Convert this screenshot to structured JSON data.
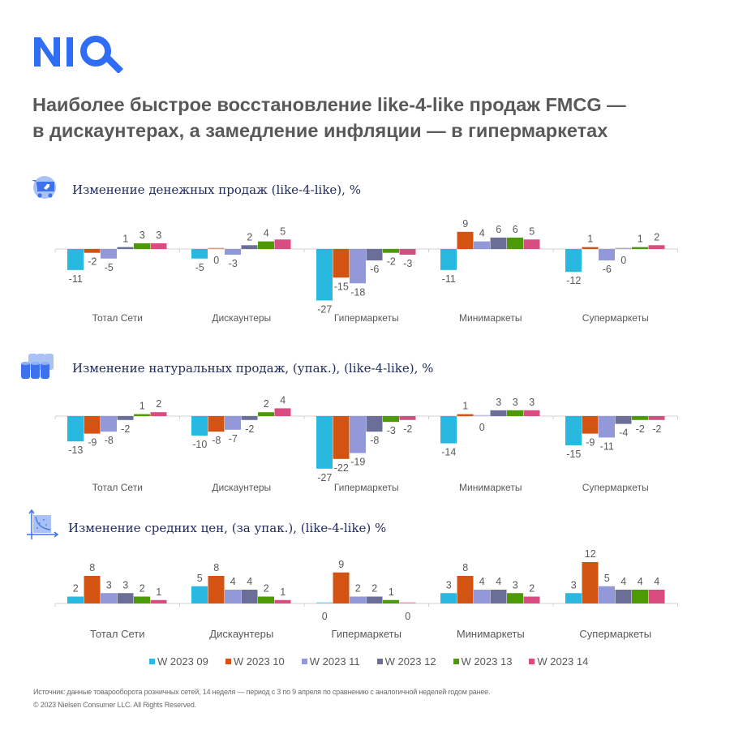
{
  "logo": {
    "text": "NIQ",
    "color": "#2f6df6"
  },
  "title": {
    "line1": "Наиболее быстрое восстановление like-4-like продаж FMCG —",
    "line2": "в дискаунтерах, а замедление инфляции — в гипермаркетах"
  },
  "sections": [
    {
      "icon": "shopping-cart-icon",
      "label": "Изменение денежных продаж (like-4-like), %"
    },
    {
      "icon": "stacked-cans-icon",
      "label": "Изменение натуральных продаж, (упак.), (like-4-like), %"
    },
    {
      "icon": "price-curve-chart-icon",
      "label": "Изменение средних цен, (за упак.), (like-4-like) %"
    }
  ],
  "legend": [
    {
      "label": "W 2023 09",
      "color": "#29b8e0"
    },
    {
      "label": "W 2023 10",
      "color": "#d35412"
    },
    {
      "label": "W 2023 11",
      "color": "#9398d9"
    },
    {
      "label": "W 2023 12",
      "color": "#6b6e96"
    },
    {
      "label": "W 2023 13",
      "color": "#4e9a06"
    },
    {
      "label": "W 2023 14",
      "color": "#d84c80"
    }
  ],
  "chart_data": [
    {
      "type": "bar",
      "title": "Изменение денежных продаж (like-4-like), %",
      "categories": [
        "Тотал Сети",
        "Дискаунтеры",
        "Гипермаркеты",
        "Минимаркеты",
        "Супермаркеты"
      ],
      "series": [
        {
          "name": "W 2023 09",
          "values": [
            -11,
            -5,
            -27,
            -11,
            -12
          ]
        },
        {
          "name": "W 2023 10",
          "values": [
            -2,
            0,
            -15,
            9,
            1
          ]
        },
        {
          "name": "W 2023 11",
          "values": [
            -5,
            -3,
            -18,
            4,
            -6
          ]
        },
        {
          "name": "W 2023 12",
          "values": [
            1,
            2,
            -6,
            6,
            0
          ]
        },
        {
          "name": "W 2023 13",
          "values": [
            3,
            4,
            -2,
            6,
            1
          ]
        },
        {
          "name": "W 2023 14",
          "values": [
            3,
            5,
            -3,
            5,
            2
          ]
        }
      ],
      "xlabel": "",
      "ylabel": "",
      "ylim": [
        -27,
        9
      ],
      "grid": false,
      "legend": "bottom"
    },
    {
      "type": "bar",
      "title": "Изменение натуральных продаж, (упак.), (like-4-like), %",
      "categories": [
        "Тотал Сети",
        "Дискаунтеры",
        "Гипермаркеты",
        "Минимаркеты",
        "Супермаркеты"
      ],
      "series": [
        {
          "name": "W 2023 09",
          "values": [
            -13,
            -10,
            -27,
            -14,
            -15
          ]
        },
        {
          "name": "W 2023 10",
          "values": [
            -9,
            -8,
            -22,
            1,
            -9
          ]
        },
        {
          "name": "W 2023 11",
          "values": [
            -8,
            -7,
            -19,
            0,
            -11
          ]
        },
        {
          "name": "W 2023 12",
          "values": [
            -2,
            -2,
            -8,
            3,
            -4
          ]
        },
        {
          "name": "W 2023 13",
          "values": [
            1,
            2,
            -3,
            3,
            -2
          ]
        },
        {
          "name": "W 2023 14",
          "values": [
            2,
            4,
            -2,
            3,
            -2
          ]
        }
      ],
      "xlabel": "",
      "ylabel": "",
      "ylim": [
        -27,
        4
      ],
      "grid": false,
      "legend": "bottom"
    },
    {
      "type": "bar",
      "title": "Изменение средних цен, (за упак.), (like-4-like) %",
      "categories": [
        "Тотал Сети",
        "Дискаунтеры",
        "Гипермаркеты",
        "Минимаркеты",
        "Супермаркеты"
      ],
      "series": [
        {
          "name": "W 2023 09",
          "values": [
            2,
            5,
            0,
            3,
            3
          ]
        },
        {
          "name": "W 2023 10",
          "values": [
            8,
            8,
            9,
            8,
            12
          ]
        },
        {
          "name": "W 2023 11",
          "values": [
            3,
            4,
            2,
            4,
            5
          ]
        },
        {
          "name": "W 2023 12",
          "values": [
            3,
            4,
            2,
            4,
            4
          ]
        },
        {
          "name": "W 2023 13",
          "values": [
            2,
            2,
            1,
            3,
            4
          ]
        },
        {
          "name": "W 2023 14",
          "values": [
            1,
            1,
            0,
            2,
            4
          ]
        }
      ],
      "xlabel": "",
      "ylabel": "",
      "ylim": [
        0,
        12
      ],
      "grid": false,
      "legend": "bottom"
    }
  ],
  "footnote": {
    "source": "Источник: данные товарооборота розничных сетей, 14 неделя — период с 3 по 9 апреля по сравнению с аналогичной неделей годом ранее.",
    "copyright": "© 2023 Nielsen Consumer LLC. All Rights Reserved."
  }
}
